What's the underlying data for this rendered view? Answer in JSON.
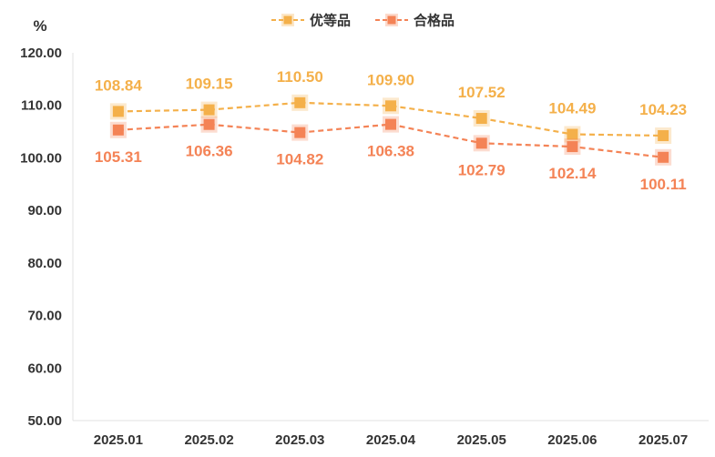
{
  "chart_data": {
    "type": "line",
    "unit_label": "%",
    "categories": [
      "2025.01",
      "2025.02",
      "2025.03",
      "2025.04",
      "2025.05",
      "2025.06",
      "2025.07"
    ],
    "ylim": [
      50,
      120
    ],
    "yticks": [
      "50.00",
      "60.00",
      "70.00",
      "80.00",
      "90.00",
      "100.00",
      "110.00",
      "120.00"
    ],
    "grid": false,
    "legend_position": "top-center",
    "series": [
      {
        "name": "优等品",
        "values": [
          108.84,
          109.15,
          110.5,
          109.9,
          107.52,
          104.49,
          104.23
        ],
        "labels": [
          "108.84",
          "109.15",
          "110.50",
          "109.90",
          "107.52",
          "104.49",
          "104.23"
        ],
        "color": "#F4B04A",
        "label_position": "above"
      },
      {
        "name": "合格品",
        "values": [
          105.31,
          106.36,
          104.82,
          106.38,
          102.79,
          102.14,
          100.11
        ],
        "labels": [
          "105.31",
          "106.36",
          "104.82",
          "106.38",
          "102.79",
          "102.14",
          "100.11"
        ],
        "color": "#F48356",
        "label_position": "below"
      }
    ]
  }
}
